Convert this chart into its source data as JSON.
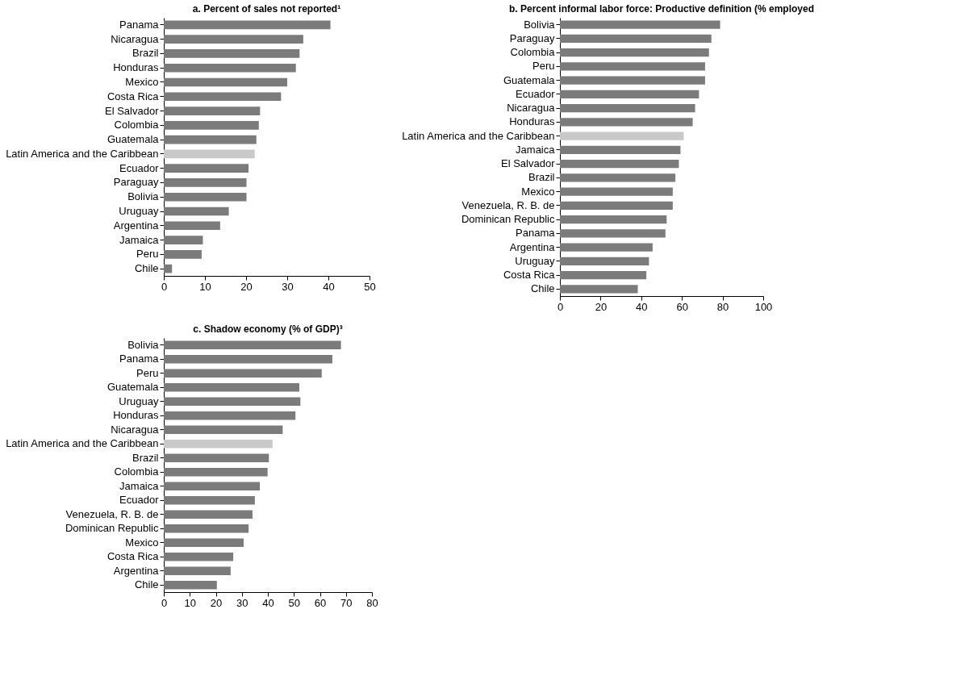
{
  "chart_data": [
    {
      "type": "bar",
      "orientation": "horizontal",
      "title": "a. Percent of sales not reported¹",
      "categories": [
        "Panama",
        "Nicaragua",
        "Brazil",
        "Honduras",
        "Mexico",
        "Costa Rica",
        "El Salvador",
        "Colombia",
        "Guatemala",
        "Latin America and the Caribbean",
        "Ecuador",
        "Paraguay",
        "Bolivia",
        "Uruguay",
        "Argentina",
        "Jamaica",
        "Peru",
        "Chile"
      ],
      "values": [
        40.5,
        33.9,
        33,
        32.1,
        30,
        28.5,
        23.4,
        23.1,
        22.5,
        22.1,
        20.6,
        20.1,
        20.1,
        15.8,
        13.7,
        9.5,
        9.2,
        2
      ],
      "colors": [
        "#7b7b7b",
        "#7b7b7b",
        "#7b7b7b",
        "#7b7b7b",
        "#7b7b7b",
        "#7b7b7b",
        "#7b7b7b",
        "#7b7b7b",
        "#7b7b7b",
        "#c9c9c9",
        "#7b7b7b",
        "#7b7b7b",
        "#7b7b7b",
        "#7b7b7b",
        "#7b7b7b",
        "#7b7b7b",
        "#7b7b7b",
        "#7b7b7b"
      ],
      "xlim": [
        0,
        50
      ],
      "xticks": [
        0,
        10,
        20,
        30,
        40,
        50
      ],
      "grid": false
    },
    {
      "type": "bar",
      "orientation": "horizontal",
      "title": "b. Percent informal labor force: Productive definition (% employed",
      "categories": [
        "Bolivia",
        "Paraguay",
        "Colombia",
        "Peru",
        "Guatemala",
        "Ecuador",
        "Nicaragua",
        "Honduras",
        "Latin America and the Caribbean",
        "Jamaica",
        "El Salvador",
        "Brazil",
        "Mexico",
        "Venezuela, R. B. de",
        "Dominican Republic",
        "Panama",
        "Argentina",
        "Uruguay",
        "Costa Rica",
        "Chile"
      ],
      "values": [
        78.8,
        74.5,
        73.3,
        71.4,
        71.4,
        68.4,
        66.5,
        65.3,
        60.9,
        59.3,
        58.5,
        56.8,
        55.5,
        55.5,
        52.5,
        51.9,
        45.6,
        43.8,
        42.5,
        38.3
      ],
      "colors": [
        "#7b7b7b",
        "#7b7b7b",
        "#7b7b7b",
        "#7b7b7b",
        "#7b7b7b",
        "#7b7b7b",
        "#7b7b7b",
        "#7b7b7b",
        "#c9c9c9",
        "#7b7b7b",
        "#7b7b7b",
        "#7b7b7b",
        "#7b7b7b",
        "#7b7b7b",
        "#7b7b7b",
        "#7b7b7b",
        "#7b7b7b",
        "#7b7b7b",
        "#7b7b7b",
        "#7b7b7b"
      ],
      "xlim": [
        0,
        100
      ],
      "xticks": [
        0,
        20,
        40,
        60,
        80,
        100
      ],
      "grid": false
    },
    {
      "type": "bar",
      "orientation": "horizontal",
      "title": "c. Shadow economy (% of GDP)³",
      "categories": [
        "Bolivia",
        "Panama",
        "Peru",
        "Guatemala",
        "Uruguay",
        "Honduras",
        "Nicaragua",
        "Latin America and the Caribbean",
        "Brazil",
        "Colombia",
        "Jamaica",
        "Ecuador",
        "Venezuela, R. B. de",
        "Dominican Republic",
        "Mexico",
        "Costa Rica",
        "Argentina",
        "Chile"
      ],
      "values": [
        68.1,
        64.8,
        60.7,
        52.1,
        52.5,
        50.6,
        45.7,
        41.8,
        40.4,
        39.9,
        36.9,
        35,
        34.1,
        32.6,
        30.7,
        26.7,
        25.7,
        20.4
      ],
      "colors": [
        "#7b7b7b",
        "#7b7b7b",
        "#7b7b7b",
        "#7b7b7b",
        "#7b7b7b",
        "#7b7b7b",
        "#7b7b7b",
        "#c9c9c9",
        "#7b7b7b",
        "#7b7b7b",
        "#7b7b7b",
        "#7b7b7b",
        "#7b7b7b",
        "#7b7b7b",
        "#7b7b7b",
        "#7b7b7b",
        "#7b7b7b",
        "#7b7b7b"
      ],
      "xlim": [
        0,
        80
      ],
      "xticks": [
        0,
        10,
        20,
        30,
        40,
        50,
        60,
        70,
        80
      ],
      "grid": false
    }
  ]
}
